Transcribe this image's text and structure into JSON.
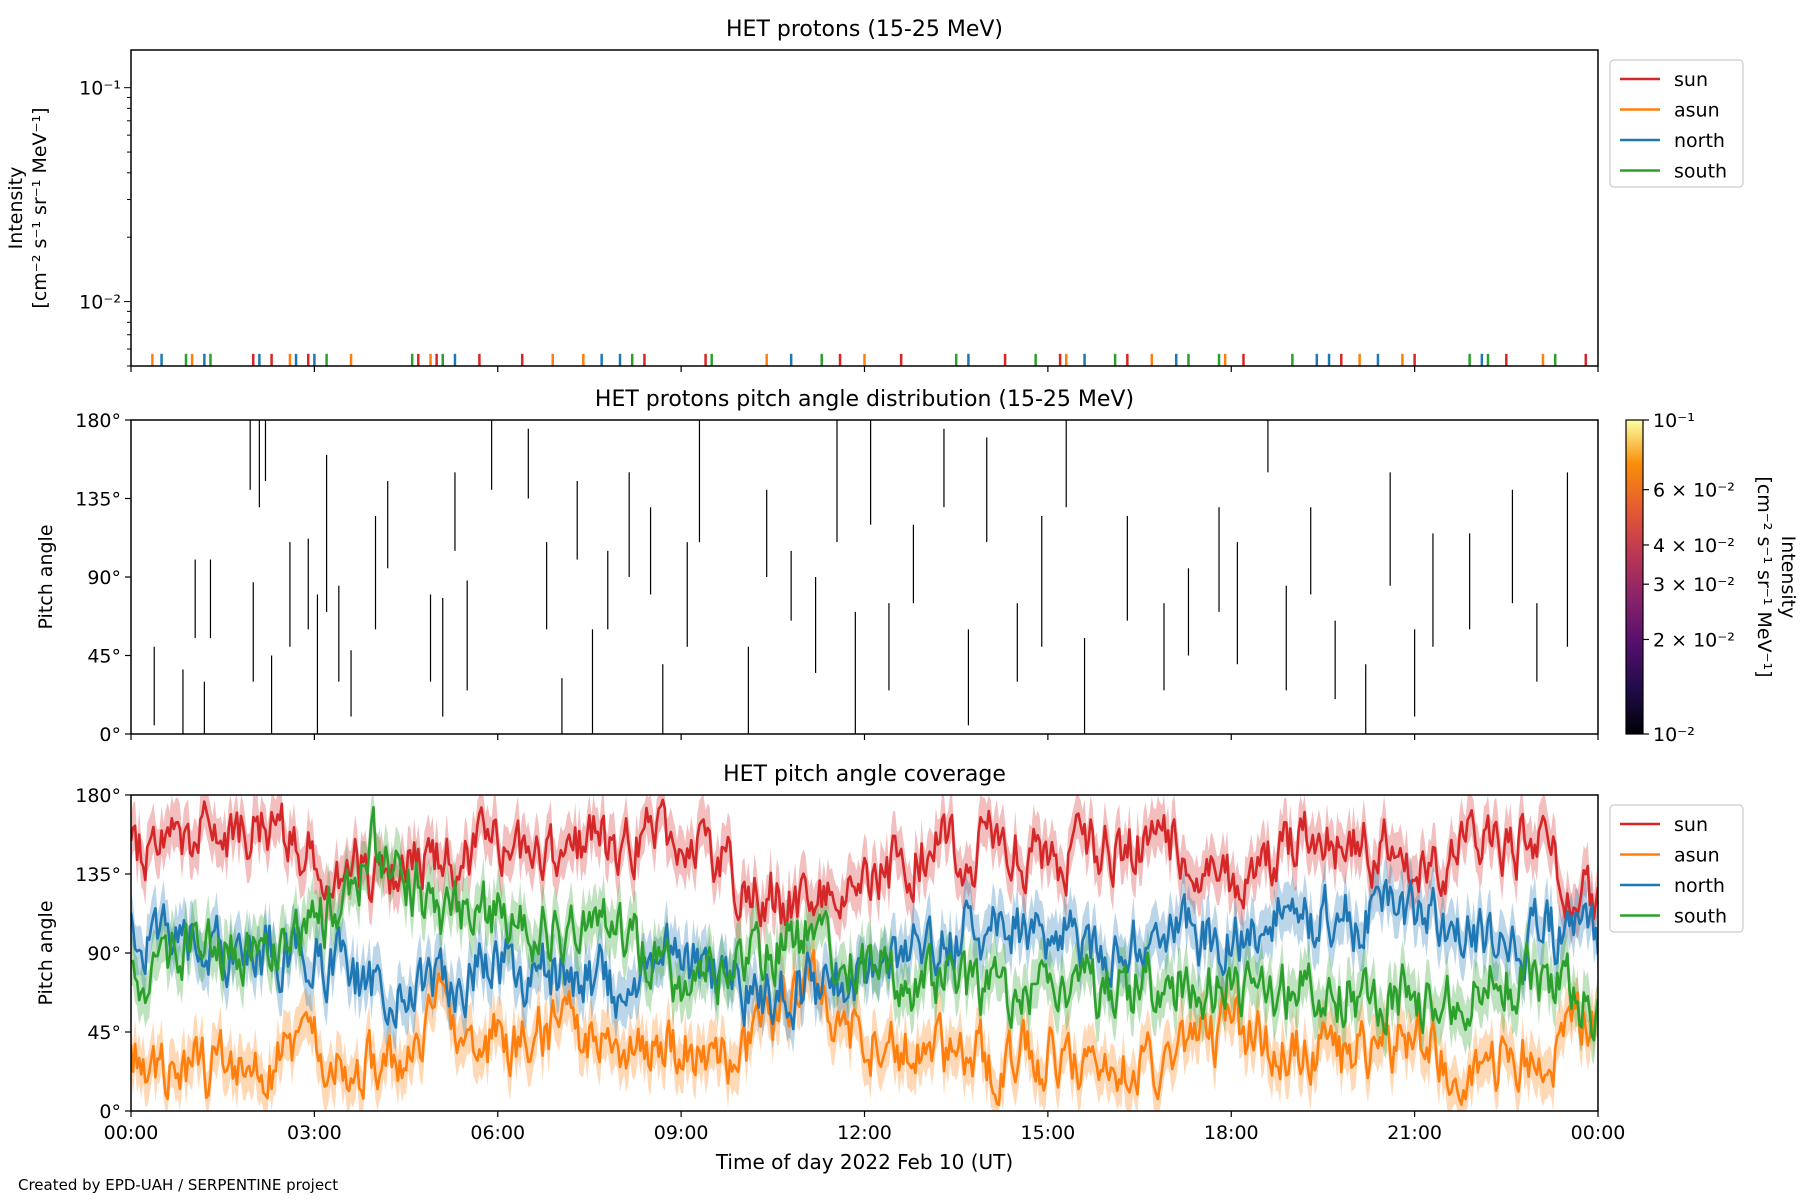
{
  "figure": {
    "credit": "Created by EPD-UAH / SERPENTINE project",
    "xlabel": "Time of day 2022 Feb 10 (UT)",
    "xticks": [
      "00:00",
      "03:00",
      "06:00",
      "09:00",
      "12:00",
      "15:00",
      "18:00",
      "21:00",
      "00:00"
    ]
  },
  "colors": {
    "sun": "#d62728",
    "asun": "#ff7f0e",
    "north": "#1f77b4",
    "south": "#2ca02c"
  },
  "chart_data": [
    {
      "type": "line",
      "title": "HET protons (15-25 MeV)",
      "ylabel_line1": "Intensity",
      "ylabel_line2": "[cm⁻² s⁻¹ sr⁻¹ MeV⁻¹]",
      "yscale": "log",
      "ylim": [
        0.005,
        0.15
      ],
      "yticks": [
        {
          "value": 0.1,
          "label": "10⁻¹"
        },
        {
          "value": 0.01,
          "label": "10⁻²"
        }
      ],
      "xlim_hours": [
        0,
        24
      ],
      "legend": {
        "placement": "outside-right-top",
        "entries": [
          "sun",
          "asun",
          "north",
          "south"
        ]
      },
      "series": [
        {
          "name": "sun",
          "spike_value": 0.0057,
          "spike_hours": [
            2.0,
            2.3,
            2.9,
            4.7,
            5.0,
            5.7,
            6.4,
            8.4,
            9.4,
            11.6,
            12.6,
            14.3,
            15.2,
            16.3,
            18.2,
            19.8,
            21.0,
            22.5,
            23.8
          ]
        },
        {
          "name": "asun",
          "spike_hours": [
            0.35,
            1.0,
            2.6,
            3.6,
            4.9,
            6.9,
            7.4,
            10.4,
            12.0,
            15.3,
            16.7,
            17.9,
            20.1,
            20.8,
            23.1
          ]
        },
        {
          "name": "north",
          "spike_hours": [
            0.5,
            1.2,
            2.1,
            2.7,
            3.0,
            5.3,
            7.7,
            8.0,
            10.8,
            13.7,
            15.6,
            17.1,
            19.4,
            19.6,
            20.4,
            22.1
          ]
        },
        {
          "name": "south",
          "spike_hours": [
            0.9,
            1.3,
            3.2,
            4.6,
            5.1,
            8.2,
            9.5,
            11.3,
            13.5,
            14.8,
            16.1,
            17.3,
            17.8,
            19.0,
            21.9,
            22.2,
            23.3
          ]
        }
      ]
    },
    {
      "type": "heatmap",
      "title": "HET protons pitch angle distribution (15-25 MeV)",
      "ylabel": "Pitch angle",
      "ylim": [
        0,
        180
      ],
      "yticks": [
        "0°",
        "45°",
        "90°",
        "135°",
        "180°"
      ],
      "xlim_hours": [
        0,
        24
      ],
      "colorbar": {
        "label_line1": "Intensity",
        "label_line2": "[cm⁻² s⁻¹ sr⁻¹ MeV⁻¹]",
        "scale": "log",
        "range": [
          0.01,
          0.1
        ],
        "colormap": "inferno",
        "ticks": [
          {
            "value": 0.1,
            "label": "10⁻¹"
          },
          {
            "value": 0.06,
            "label": "6 × 10⁻²"
          },
          {
            "value": 0.04,
            "label": "4 × 10⁻²"
          },
          {
            "value": 0.03,
            "label": "3 × 10⁻²"
          },
          {
            "value": 0.02,
            "label": "2 × 10⁻²"
          },
          {
            "value": 0.01,
            "label": "10⁻²"
          }
        ]
      },
      "segments": [
        [
          0.38,
          5,
          50
        ],
        [
          0.85,
          0,
          37
        ],
        [
          1.05,
          55,
          100
        ],
        [
          1.2,
          0,
          30
        ],
        [
          1.3,
          55,
          100
        ],
        [
          1.95,
          140,
          180
        ],
        [
          2.0,
          30,
          87
        ],
        [
          2.1,
          130,
          180
        ],
        [
          2.2,
          145,
          180
        ],
        [
          2.3,
          0,
          45
        ],
        [
          2.6,
          50,
          110
        ],
        [
          2.9,
          60,
          112
        ],
        [
          3.05,
          0,
          80
        ],
        [
          3.2,
          70,
          160
        ],
        [
          3.4,
          30,
          85
        ],
        [
          3.6,
          10,
          48
        ],
        [
          4.0,
          60,
          125
        ],
        [
          4.2,
          95,
          145
        ],
        [
          4.9,
          30,
          80
        ],
        [
          5.1,
          10,
          78
        ],
        [
          5.3,
          105,
          150
        ],
        [
          5.5,
          25,
          88
        ],
        [
          5.9,
          140,
          180
        ],
        [
          6.5,
          135,
          175
        ],
        [
          6.8,
          60,
          110
        ],
        [
          7.05,
          0,
          32
        ],
        [
          7.3,
          100,
          145
        ],
        [
          7.55,
          0,
          60
        ],
        [
          7.8,
          60,
          105
        ],
        [
          8.15,
          90,
          150
        ],
        [
          8.5,
          80,
          130
        ],
        [
          8.7,
          0,
          40
        ],
        [
          9.1,
          50,
          110
        ],
        [
          9.3,
          110,
          180
        ],
        [
          10.1,
          0,
          50
        ],
        [
          10.4,
          90,
          140
        ],
        [
          10.8,
          65,
          105
        ],
        [
          11.2,
          35,
          90
        ],
        [
          11.55,
          110,
          180
        ],
        [
          11.85,
          0,
          70
        ],
        [
          12.1,
          120,
          180
        ],
        [
          12.4,
          25,
          75
        ],
        [
          12.8,
          75,
          120
        ],
        [
          13.3,
          130,
          175
        ],
        [
          13.7,
          5,
          60
        ],
        [
          14.0,
          110,
          170
        ],
        [
          14.5,
          30,
          75
        ],
        [
          14.9,
          50,
          125
        ],
        [
          15.3,
          130,
          180
        ],
        [
          15.6,
          0,
          55
        ],
        [
          16.3,
          65,
          125
        ],
        [
          16.9,
          25,
          75
        ],
        [
          17.3,
          45,
          95
        ],
        [
          17.8,
          70,
          130
        ],
        [
          18.1,
          40,
          110
        ],
        [
          18.6,
          150,
          180
        ],
        [
          18.9,
          25,
          85
        ],
        [
          19.3,
          80,
          130
        ],
        [
          19.7,
          20,
          65
        ],
        [
          20.2,
          0,
          40
        ],
        [
          20.6,
          85,
          150
        ],
        [
          21.0,
          10,
          60
        ],
        [
          21.3,
          50,
          115
        ],
        [
          21.9,
          60,
          115
        ],
        [
          22.6,
          75,
          140
        ],
        [
          23.0,
          30,
          75
        ],
        [
          23.5,
          50,
          150
        ]
      ]
    },
    {
      "type": "line",
      "title": "HET pitch angle coverage",
      "ylabel": "Pitch angle",
      "ylim": [
        0,
        180
      ],
      "yticks": [
        "0°",
        "45°",
        "90°",
        "135°",
        "180°"
      ],
      "xlim_hours": [
        0,
        24
      ],
      "legend": {
        "placement": "outside-right-top",
        "entries": [
          "sun",
          "asun",
          "north",
          "south"
        ]
      },
      "band_halfwidth_deg": 14,
      "series": [
        {
          "name": "sun",
          "times_hours": [
            0,
            1,
            2,
            3,
            4,
            5,
            6,
            7,
            8,
            9,
            10,
            11,
            12,
            13,
            14,
            15,
            16,
            17,
            18,
            19,
            20,
            21,
            22,
            23,
            24
          ],
          "values": [
            150,
            160,
            158,
            150,
            132,
            142,
            148,
            150,
            153,
            160,
            130,
            112,
            130,
            150,
            150,
            145,
            150,
            155,
            130,
            155,
            150,
            148,
            148,
            150,
            118
          ]
        },
        {
          "name": "asun",
          "times_hours": [
            0,
            1,
            2,
            3,
            4,
            5,
            6,
            7,
            8,
            9,
            10,
            11,
            12,
            13,
            14,
            15,
            16,
            17,
            18,
            19,
            20,
            21,
            22,
            23,
            24
          ],
          "values": [
            32,
            25,
            20,
            40,
            20,
            60,
            40,
            45,
            42,
            35,
            30,
            72,
            40,
            30,
            30,
            32,
            30,
            30,
            45,
            32,
            30,
            35,
            30,
            30,
            55
          ]
        },
        {
          "name": "north",
          "times_hours": [
            0,
            1,
            2,
            3,
            4,
            5,
            6,
            7,
            8,
            9,
            10,
            11,
            12,
            13,
            14,
            15,
            16,
            17,
            18,
            19,
            20,
            21,
            22,
            23,
            24
          ],
          "values": [
            105,
            95,
            92,
            90,
            70,
            75,
            82,
            80,
            72,
            88,
            70,
            70,
            80,
            95,
            105,
            102,
            95,
            100,
            98,
            110,
            110,
            112,
            100,
            100,
            95
          ]
        },
        {
          "name": "south",
          "times_hours": [
            0,
            1,
            2,
            3,
            4,
            5,
            6,
            7,
            8,
            9,
            10,
            11,
            12,
            13,
            14,
            15,
            16,
            17,
            18,
            19,
            20,
            21,
            22,
            23,
            24
          ],
          "values": [
            75,
            90,
            95,
            100,
            150,
            115,
            110,
            105,
            102,
            72,
            80,
            100,
            80,
            72,
            68,
            70,
            70,
            72,
            72,
            65,
            70,
            65,
            68,
            80,
            55
          ]
        }
      ]
    }
  ]
}
